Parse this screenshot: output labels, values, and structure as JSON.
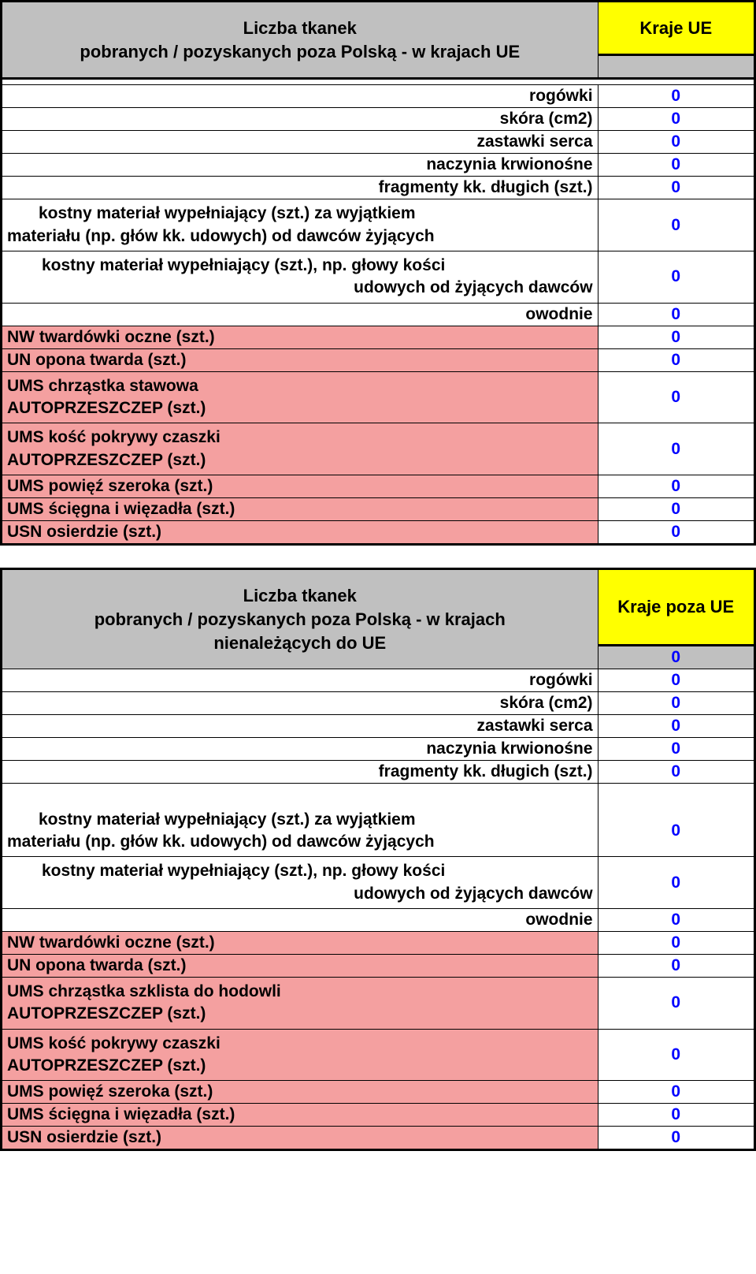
{
  "colors": {
    "header_bg": "#c0c0c0",
    "yellow_bg": "#ffff00",
    "pink_bg": "#f4a0a0",
    "white_bg": "#ffffff",
    "value_color": "#0000ff",
    "border_color": "#000000"
  },
  "table1": {
    "header_title_line1": "Liczba tkanek",
    "header_title_line2": "pobranych / pozyskanych poza Polską - w krajach UE",
    "header_right": "Kraje UE",
    "header_sub": "",
    "rows": [
      {
        "label": "rogówki",
        "value": "0",
        "align": "right",
        "bg": "#ffffff"
      },
      {
        "label": "skóra (cm2)",
        "value": "0",
        "align": "right",
        "bg": "#ffffff"
      },
      {
        "label": "zastawki serca",
        "value": "0",
        "align": "right",
        "bg": "#ffffff"
      },
      {
        "label": "naczynia krwionośne",
        "value": "0",
        "align": "right",
        "bg": "#ffffff"
      },
      {
        "label": "fragmenty kk. długich (szt.)",
        "value": "0",
        "align": "right",
        "bg": "#ffffff"
      },
      {
        "label": "kostny materiał wypełniający (szt.) za wyjątkiem materiału (np. głów kk. udowych) od dawców żyjących",
        "value": "0",
        "align": "justify",
        "bg": "#ffffff",
        "tall": true
      },
      {
        "label": "kostny materiał wypełniający (szt.), np. głowy kości udowych od żyjących dawców",
        "value": "0",
        "align": "right-multi",
        "bg": "#ffffff",
        "tall": true
      },
      {
        "label": "owodnie",
        "value": "0",
        "align": "right",
        "bg": "#ffffff"
      },
      {
        "label": "NW twardówki oczne (szt.)",
        "value": "0",
        "align": "left",
        "bg": "#f4a0a0"
      },
      {
        "label": "UN opona twarda (szt.)",
        "value": "0",
        "align": "left",
        "bg": "#f4a0a0"
      },
      {
        "label": "UMS chrząstka stawowa AUTOPRZESZCZEP (szt.)",
        "value": "0",
        "align": "left",
        "bg": "#f4a0a0",
        "tall": true,
        "br": true
      },
      {
        "label": "UMS kość pokrywy czaszki AUTOPRZESZCZEP (szt.)",
        "value": "0",
        "align": "left",
        "bg": "#f4a0a0",
        "tall": true,
        "br": true
      },
      {
        "label": "UMS powięź szeroka (szt.)",
        "value": "0",
        "align": "left",
        "bg": "#f4a0a0"
      },
      {
        "label": "UMS ścięgna i więzadła (szt.)",
        "value": "0",
        "align": "left",
        "bg": "#f4a0a0"
      },
      {
        "label": "USN osierdzie (szt.)",
        "value": "0",
        "align": "left",
        "bg": "#f4a0a0"
      }
    ]
  },
  "table2": {
    "header_title_line1": "Liczba tkanek",
    "header_title_line2": "pobranych / pozyskanych poza Polską - w krajach",
    "header_title_line3": "nienależących do UE",
    "header_right": "Kraje poza UE",
    "header_sub": "0",
    "rows": [
      {
        "label": "rogówki",
        "value": "0",
        "align": "right",
        "bg": "#ffffff"
      },
      {
        "label": "skóra (cm2)",
        "value": "0",
        "align": "right",
        "bg": "#ffffff"
      },
      {
        "label": "zastawki serca",
        "value": "0",
        "align": "right",
        "bg": "#ffffff"
      },
      {
        "label": "naczynia krwionośne",
        "value": "0",
        "align": "right",
        "bg": "#ffffff"
      },
      {
        "label": "fragmenty kk. długich (szt.)",
        "value": "0",
        "align": "right",
        "bg": "#ffffff"
      },
      {
        "label": "kostny materiał wypełniający (szt.) za wyjątkiem materiału (np. głów kk. udowych) od dawców żyjących",
        "value": "0",
        "align": "justify",
        "bg": "#ffffff",
        "tall": true,
        "spacer_top": true
      },
      {
        "label": "kostny materiał wypełniający (szt.), np. głowy kości udowych od żyjących dawców",
        "value": "0",
        "align": "right-multi",
        "bg": "#ffffff",
        "tall": true
      },
      {
        "label": "owodnie",
        "value": "0",
        "align": "right",
        "bg": "#ffffff"
      },
      {
        "label": "NW twardówki oczne (szt.)",
        "value": "0",
        "align": "left",
        "bg": "#f4a0a0"
      },
      {
        "label": "UN opona twarda (szt.)",
        "value": "0",
        "align": "left",
        "bg": "#f4a0a0"
      },
      {
        "label": "UMS chrząstka szklista do hodowli AUTOPRZESZCZEP (szt.)",
        "value": "0",
        "align": "left",
        "bg": "#f4a0a0",
        "tall": true,
        "br": true
      },
      {
        "label": "UMS kość pokrywy czaszki AUTOPRZESZCZEP (szt.)",
        "value": "0",
        "align": "left",
        "bg": "#f4a0a0",
        "tall": true,
        "br": true
      },
      {
        "label": "UMS powięź szeroka (szt.)",
        "value": "0",
        "align": "left",
        "bg": "#f4a0a0"
      },
      {
        "label": "UMS ścięgna i więzadła (szt.)",
        "value": "0",
        "align": "left",
        "bg": "#f4a0a0"
      },
      {
        "label": "USN osierdzie (szt.)",
        "value": "0",
        "align": "left",
        "bg": "#f4a0a0"
      }
    ]
  }
}
